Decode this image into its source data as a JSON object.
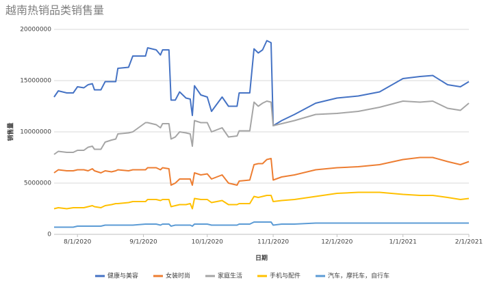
{
  "chart_data": {
    "type": "line",
    "title": "越南热销品类销售量",
    "x_label": "日期",
    "y_label": "销售量",
    "x": [
      "7/21/2020",
      "7/23/2020",
      "7/27/2020",
      "7/30/2020",
      "8/1/2020",
      "8/4/2020",
      "8/6/2020",
      "8/8/2020",
      "8/9/2020",
      "8/12/2020",
      "8/14/2020",
      "8/17/2020",
      "8/19/2020",
      "8/20/2020",
      "8/25/2020",
      "8/27/2020",
      "9/2/2020",
      "9/3/2020",
      "9/7/2020",
      "9/9/2020",
      "9/10/2020",
      "9/13/2020",
      "9/14/2020",
      "9/16/2020",
      "9/18/2020",
      "9/21/2020",
      "9/23/2020",
      "9/24/2020",
      "9/25/2020",
      "9/28/2020",
      "10/1/2020",
      "10/3/2020",
      "10/8/2020",
      "10/11/2020",
      "10/15/2020",
      "10/16/2020",
      "10/21/2020",
      "10/23/2020",
      "10/25/2020",
      "10/27/2020",
      "10/29/2020",
      "10/31/2020",
      "11/1/2020",
      "11/5/2020",
      "11/11/2020",
      "11/21/2020",
      "12/1/2020",
      "12/11/2020",
      "12/21/2020",
      "1/1/2021",
      "1/9/2021",
      "1/15/2021",
      "1/22/2021",
      "1/28/2021",
      "2/1/2021"
    ],
    "series": [
      {
        "name": "健康与美容",
        "color": "#4472c4",
        "values": [
          13400000,
          14000000,
          13800000,
          13800000,
          14400000,
          14300000,
          14600000,
          14700000,
          14100000,
          14100000,
          14900000,
          14900000,
          14900000,
          16200000,
          16300000,
          17400000,
          17400000,
          18200000,
          18000000,
          17500000,
          18000000,
          18000000,
          13100000,
          13100000,
          13900000,
          13300000,
          13200000,
          11600000,
          14500000,
          13600000,
          13400000,
          12000000,
          13400000,
          12500000,
          12500000,
          13800000,
          13800000,
          18100000,
          17700000,
          18000000,
          18900000,
          18700000,
          10600000,
          11100000,
          11700000,
          12800000,
          13300000,
          13500000,
          13900000,
          15200000,
          15400000,
          15500000,
          14600000,
          14400000,
          14900000
        ]
      },
      {
        "name": "女装时尚",
        "color": "#ed7d31",
        "values": [
          6000000,
          6300000,
          6200000,
          6200000,
          6300000,
          6300000,
          6200000,
          6400000,
          6200000,
          6000000,
          6200000,
          6100000,
          6200000,
          6300000,
          6200000,
          6300000,
          6300000,
          6500000,
          6500000,
          6300000,
          6500000,
          6400000,
          4800000,
          5000000,
          5400000,
          5400000,
          5400000,
          4800000,
          6000000,
          5800000,
          5900000,
          5400000,
          5800000,
          5000000,
          4800000,
          5200000,
          5300000,
          6800000,
          6900000,
          6900000,
          7300000,
          7400000,
          5300000,
          5600000,
          5800000,
          6300000,
          6500000,
          6600000,
          6800000,
          7300000,
          7500000,
          7500000,
          7100000,
          6800000,
          7100000
        ]
      },
      {
        "name": "家庭生活",
        "color": "#a5a5a5",
        "values": [
          7800000,
          8100000,
          8000000,
          8000000,
          8200000,
          8200000,
          8500000,
          8600000,
          8300000,
          8300000,
          9000000,
          9200000,
          9300000,
          9800000,
          9900000,
          10000000,
          10900000,
          10900000,
          10700000,
          10400000,
          10800000,
          10800000,
          9300000,
          9500000,
          10000000,
          9900000,
          9800000,
          8600000,
          11100000,
          10900000,
          10900000,
          10000000,
          10400000,
          9500000,
          9600000,
          10100000,
          10100000,
          12900000,
          12500000,
          12800000,
          13000000,
          12900000,
          10600000,
          10800000,
          11100000,
          11700000,
          11800000,
          12000000,
          12400000,
          13000000,
          12900000,
          13000000,
          12300000,
          12100000,
          12800000
        ]
      },
      {
        "name": "手机与配件",
        "color": "#ffc000",
        "values": [
          2500000,
          2600000,
          2500000,
          2600000,
          2600000,
          2600000,
          2700000,
          2800000,
          2700000,
          2600000,
          2800000,
          2900000,
          3000000,
          3000000,
          3100000,
          3200000,
          3200000,
          3400000,
          3400000,
          3300000,
          3400000,
          3400000,
          2700000,
          2800000,
          2900000,
          2900000,
          3000000,
          2500000,
          3500000,
          3400000,
          3400000,
          3100000,
          3300000,
          2900000,
          2900000,
          3000000,
          3000000,
          3700000,
          3600000,
          3700000,
          3800000,
          3800000,
          3200000,
          3300000,
          3400000,
          3700000,
          4000000,
          4100000,
          4100000,
          3900000,
          3800000,
          3800000,
          3600000,
          3400000,
          3500000
        ]
      },
      {
        "name": "汽车，摩托车，自行车",
        "color": "#5b9bd5",
        "values": [
          700000,
          700000,
          700000,
          700000,
          800000,
          800000,
          800000,
          800000,
          800000,
          800000,
          900000,
          900000,
          900000,
          900000,
          900000,
          900000,
          1000000,
          1000000,
          1000000,
          900000,
          1000000,
          1000000,
          800000,
          900000,
          900000,
          900000,
          900000,
          800000,
          1000000,
          1000000,
          1000000,
          900000,
          900000,
          900000,
          900000,
          1000000,
          1000000,
          1200000,
          1200000,
          1200000,
          1200000,
          1200000,
          900000,
          1000000,
          1000000,
          1100000,
          1100000,
          1100000,
          1100000,
          1100000,
          1100000,
          1100000,
          1100000,
          1100000,
          1100000
        ]
      }
    ],
    "xlim": [
      "7/21/2020",
      "2/1/2021"
    ],
    "xticks": [
      "8/1/2020",
      "9/1/2020",
      "10/1/2020",
      "11/1/2020",
      "12/1/2020",
      "1/1/2021",
      "2/1/2021"
    ],
    "ylim": [
      0,
      20000000
    ],
    "yticks": [
      0,
      5000000,
      10000000,
      15000000,
      20000000
    ],
    "grid": true,
    "legend": "bottom"
  }
}
